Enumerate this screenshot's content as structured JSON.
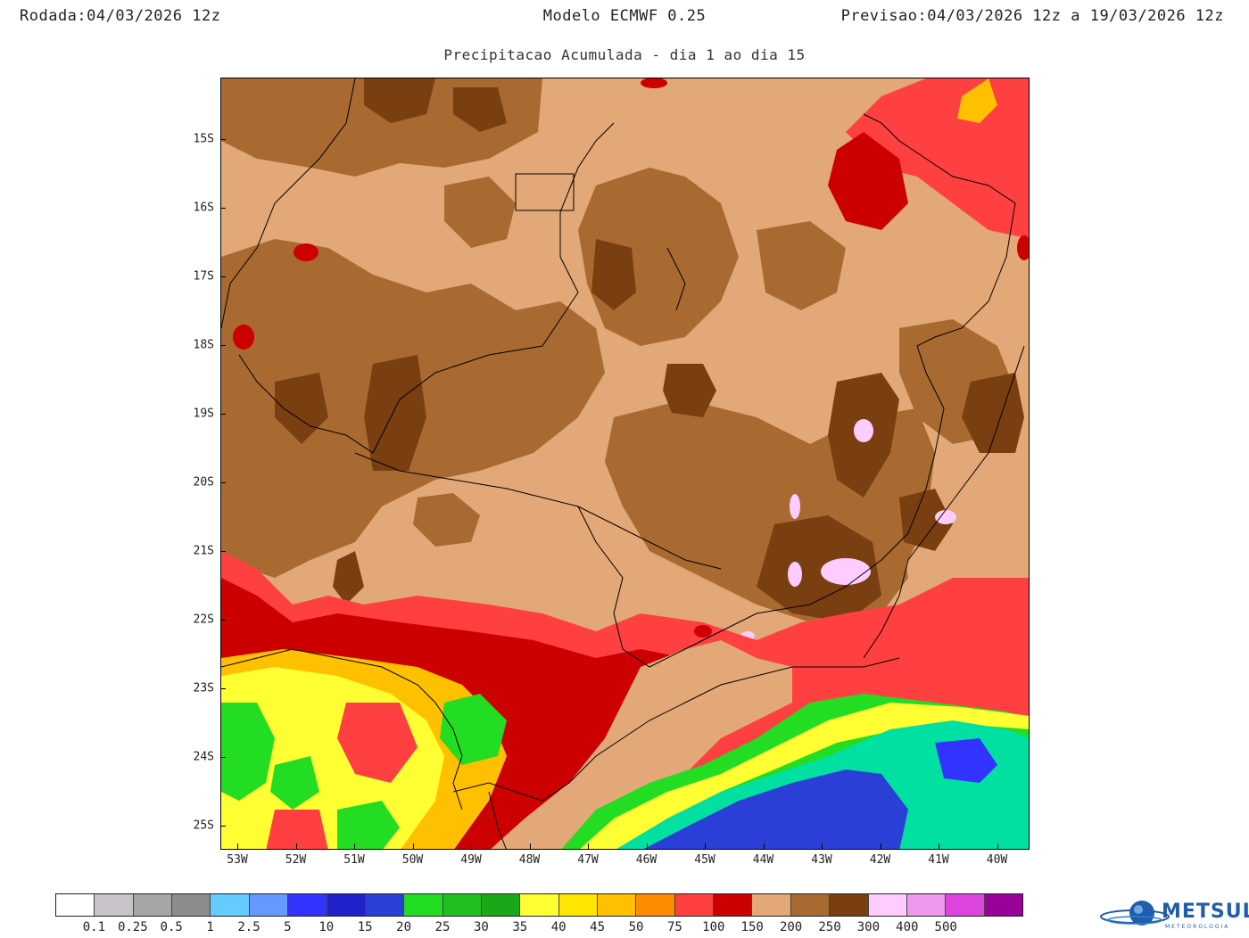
{
  "header": {
    "run_label": "Rodada:",
    "run_value": "04/03/2026 12z",
    "model": "Modelo ECMWF 0.25",
    "forecast_label": "Previsao:",
    "forecast_value": "04/03/2026 12z a 19/03/2026 12z"
  },
  "subtitle": "Precipitacao Acumulada - dia 1 ao dia 15",
  "axes": {
    "lat_labels": [
      "15S",
      "16S",
      "17S",
      "18S",
      "19S",
      "20S",
      "21S",
      "22S",
      "23S",
      "24S",
      "25S"
    ],
    "lon_labels": [
      "53W",
      "52W",
      "51W",
      "50W",
      "49W",
      "48W",
      "47W",
      "46W",
      "45W",
      "44W",
      "43W",
      "42W",
      "41W",
      "40W"
    ]
  },
  "legend": {
    "colors": [
      "#ffffff",
      "#c8c3c8",
      "#a6a6a6",
      "#8c8c8c",
      "#66ccff",
      "#6699ff",
      "#3333ff",
      "#2222cc",
      "#2a3fd6",
      "#22dd22",
      "#20c020",
      "#18a818",
      "#ffff33",
      "#ffe600",
      "#ffc000",
      "#ff8c00",
      "#ff4040",
      "#cc0000",
      "#e2a877",
      "#a86a30",
      "#7a3f10",
      "#ffccff",
      "#ee99ee",
      "#dd44dd",
      "#990099"
    ],
    "labels": [
      "0.1",
      "0.25",
      "0.5",
      "1",
      "2.5",
      "5",
      "10",
      "15",
      "20",
      "25",
      "30",
      "35",
      "40",
      "45",
      "50",
      "75",
      "100",
      "150",
      "200",
      "250",
      "300",
      "400",
      "500"
    ]
  },
  "logo": {
    "name": "METSUL",
    "tagline": "METEOROLOGIA"
  }
}
